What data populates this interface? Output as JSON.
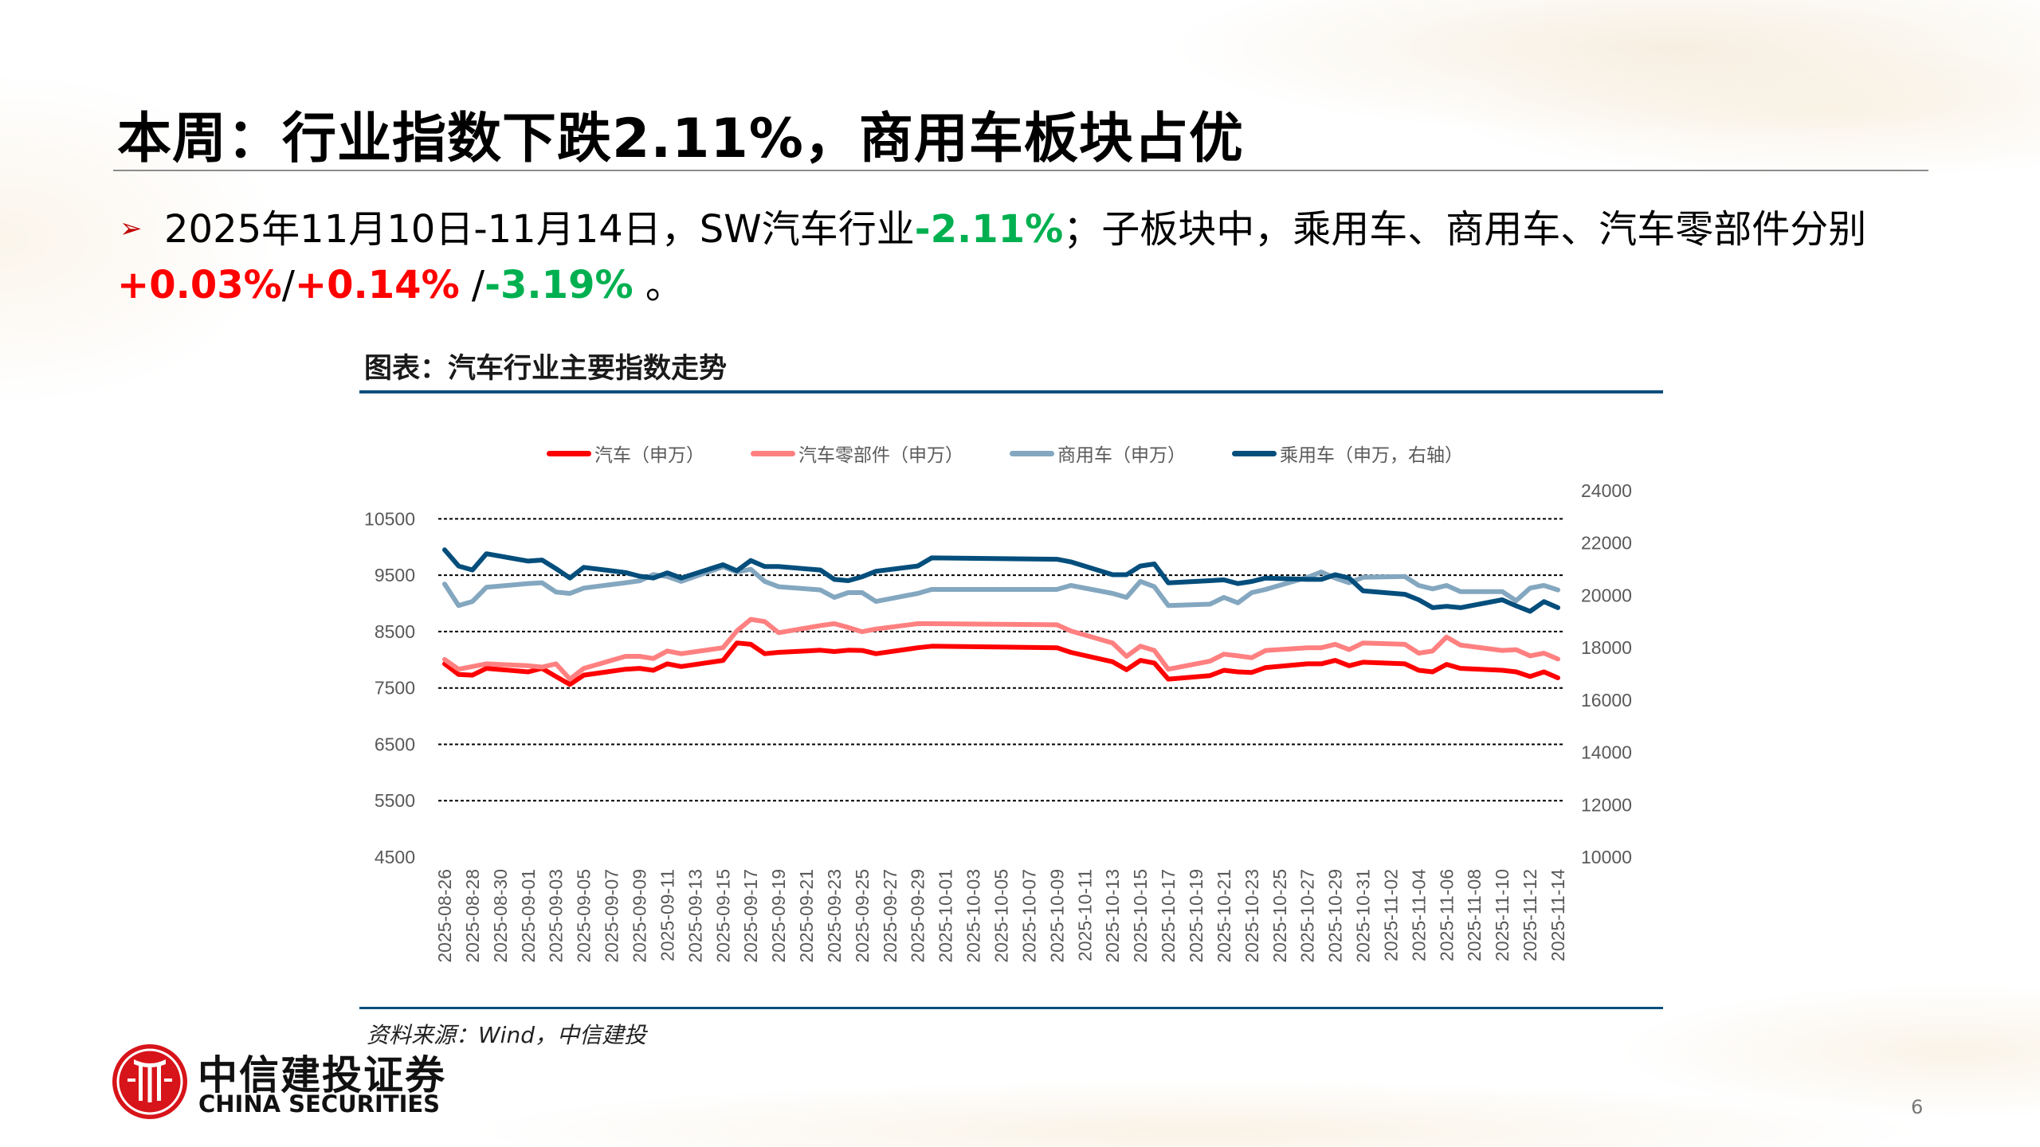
{
  "slide": {
    "title": "本周：行业指数下跌2.11%，商用车板块占优",
    "bullet_line1": [
      {
        "text": "2025年11月10日-11月14日，SW汽车行业",
        "style": "normal"
      },
      {
        "text": "-2.11%",
        "style": "green"
      },
      {
        "text": "；子板块中，乘用车、商用车、汽车零部件分别",
        "style": "normal"
      }
    ],
    "bullet_line2": [
      {
        "text": "+0.03%",
        "style": "red"
      },
      {
        "text": "/",
        "style": "normal"
      },
      {
        "text": "+0.14%",
        "style": "red"
      },
      {
        "text": " /",
        "style": "normal"
      },
      {
        "text": "-3.19%",
        "style": "green"
      },
      {
        "text": " 。",
        "style": "normal"
      }
    ],
    "bullet_icon": "arrow-bullet-icon",
    "chart_caption": "图表：汽车行业主要指数走势",
    "source": "资料来源：Wind，中信建投",
    "logo": {
      "name_cn": "中信建投证券",
      "name_en": "CHINA SECURITIES"
    },
    "page_number": "6",
    "colors": {
      "red": "#ff0000",
      "green": "#00b050",
      "accent": "#0b4f7c"
    }
  },
  "chart_data": {
    "type": "line",
    "title": "",
    "legend_position": "top",
    "grid": "horizontal dashed (left axis)",
    "xlabel": "",
    "ylabel": "",
    "left_axis": {
      "min": 4500,
      "max": 11000,
      "ticks": [
        "4500",
        "5500",
        "6500",
        "7500",
        "8500",
        "9500",
        "10500"
      ]
    },
    "right_axis": {
      "min": 10000,
      "max": 24000,
      "ticks": [
        "10000",
        "12000",
        "14000",
        "16000",
        "18000",
        "20000",
        "22000",
        "24000"
      ]
    },
    "x_tick_labels": [
      "2025-08-26",
      "2025-08-28",
      "2025-08-30",
      "2025-09-01",
      "2025-09-03",
      "2025-09-05",
      "2025-09-07",
      "2025-09-09",
      "2025-09-11",
      "2025-09-13",
      "2025-09-15",
      "2025-09-17",
      "2025-09-19",
      "2025-09-21",
      "2025-09-23",
      "2025-09-25",
      "2025-09-27",
      "2025-09-29",
      "2025-10-01",
      "2025-10-03",
      "2025-10-05",
      "2025-10-07",
      "2025-10-09",
      "2025-10-11",
      "2025-10-13",
      "2025-10-15",
      "2025-10-17",
      "2025-10-19",
      "2025-10-21",
      "2025-10-23",
      "2025-10-25",
      "2025-10-27",
      "2025-10-29",
      "2025-10-31",
      "2025-11-02",
      "2025-11-04",
      "2025-11-06",
      "2025-11-08",
      "2025-11-10",
      "2025-11-12",
      "2025-11-14"
    ],
    "x": [
      "2025-08-26",
      "2025-08-27",
      "2025-08-28",
      "2025-08-29",
      "2025-09-01",
      "2025-09-02",
      "2025-09-03",
      "2025-09-04",
      "2025-09-05",
      "2025-09-08",
      "2025-09-09",
      "2025-09-10",
      "2025-09-11",
      "2025-09-12",
      "2025-09-15",
      "2025-09-16",
      "2025-09-17",
      "2025-09-18",
      "2025-09-19",
      "2025-09-22",
      "2025-09-23",
      "2025-09-24",
      "2025-09-25",
      "2025-09-26",
      "2025-09-29",
      "2025-09-30",
      "2025-10-09",
      "2025-10-10",
      "2025-10-13",
      "2025-10-14",
      "2025-10-15",
      "2025-10-16",
      "2025-10-17",
      "2025-10-20",
      "2025-10-21",
      "2025-10-22",
      "2025-10-23",
      "2025-10-24",
      "2025-10-27",
      "2025-10-28",
      "2025-10-29",
      "2025-10-30",
      "2025-10-31",
      "2025-11-03",
      "2025-11-04",
      "2025-11-05",
      "2025-11-06",
      "2025-11-07",
      "2025-11-10",
      "2025-11-11",
      "2025-11-12",
      "2025-11-13",
      "2025-11-14"
    ],
    "series": [
      {
        "name": "汽车（申万）",
        "axis": "left",
        "color": "#ff0000",
        "values": [
          7928,
          7738,
          7728,
          7847,
          7785,
          7847,
          7704,
          7562,
          7728,
          7832,
          7847,
          7814,
          7928,
          7880,
          7989,
          8298,
          8274,
          8108,
          8132,
          8170,
          8146,
          8170,
          8165,
          8108,
          8213,
          8241,
          8213,
          8132,
          7965,
          7823,
          7989,
          7942,
          7657,
          7719,
          7814,
          7785,
          7776,
          7861,
          7928,
          7928,
          7989,
          7894,
          7956,
          7928,
          7814,
          7785,
          7918,
          7847,
          7814,
          7785,
          7704,
          7785,
          7680
        ]
      },
      {
        "name": "汽车零部件（申万）",
        "axis": "left",
        "color": "#ff8080",
        "values": [
          8004,
          7832,
          7880,
          7928,
          7894,
          7870,
          7928,
          7657,
          7847,
          8061,
          8061,
          8023,
          8156,
          8108,
          8213,
          8512,
          8716,
          8679,
          8480,
          8607,
          8640,
          8574,
          8498,
          8546,
          8640,
          8640,
          8621,
          8512,
          8298,
          8061,
          8241,
          8165,
          7832,
          7975,
          8099,
          8070,
          8037,
          8165,
          8213,
          8213,
          8274,
          8179,
          8298,
          8274,
          8118,
          8156,
          8403,
          8260,
          8165,
          8179,
          8070,
          8118,
          8013
        ]
      },
      {
        "name": "商用车（申万）",
        "axis": "left",
        "color": "#84a7c0",
        "values": [
          9343,
          8963,
          9034,
          9286,
          9353,
          9367,
          9201,
          9177,
          9272,
          9367,
          9400,
          9510,
          9477,
          9391,
          9650,
          9557,
          9605,
          9391,
          9296,
          9239,
          9106,
          9191,
          9191,
          9034,
          9177,
          9248,
          9248,
          9319,
          9177,
          9106,
          9391,
          9296,
          8963,
          8987,
          9106,
          9011,
          9191,
          9248,
          9462,
          9557,
          9448,
          9367,
          9462,
          9477,
          9319,
          9258,
          9319,
          9210,
          9210,
          9049,
          9272,
          9319,
          9239
        ]
      },
      {
        "name": "乘用车（申万，右轴）",
        "axis": "right",
        "color": "#044e7c",
        "values": [
          21740,
          21120,
          20970,
          21590,
          21310,
          21350,
          21020,
          20660,
          21070,
          20870,
          20730,
          20660,
          20860,
          20660,
          21170,
          20940,
          21330,
          21100,
          21100,
          20970,
          20610,
          20560,
          20710,
          20920,
          21120,
          21430,
          21380,
          21280,
          20790,
          20790,
          21120,
          21200,
          20480,
          20560,
          20590,
          20450,
          20530,
          20660,
          20610,
          20610,
          20790,
          20660,
          20170,
          20040,
          19830,
          19530,
          19580,
          19530,
          19830,
          19600,
          19390,
          19760,
          19530
        ]
      }
    ]
  }
}
